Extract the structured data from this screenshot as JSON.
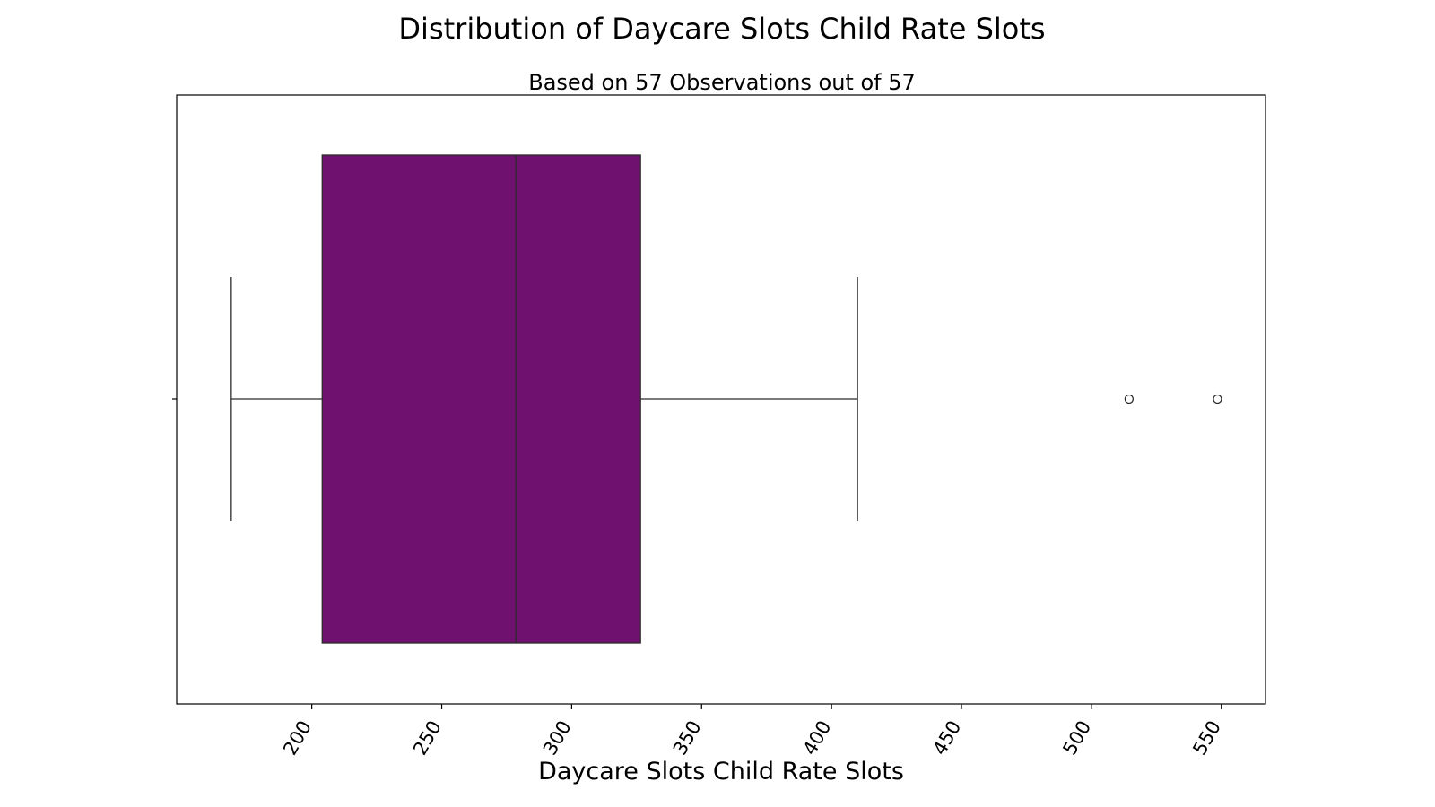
{
  "chart_data": {
    "type": "box",
    "title": "Distribution of Daycare Slots Child Rate Slots",
    "subtitle": "Based on 57 Observations out of 57",
    "xlabel": "Daycare Slots Child Rate Slots",
    "ylabel": "",
    "xlim": [
      148,
      567
    ],
    "xticks": [
      200,
      250,
      300,
      350,
      400,
      450,
      500,
      550
    ],
    "tick_rotation_deg": -60,
    "grid": false,
    "box": {
      "whisker_low": 169,
      "q1": 204,
      "median": 278.5,
      "q3": 326.5,
      "whisker_high": 410,
      "outliers": [
        514.5,
        548.5
      ]
    },
    "colors": {
      "box_fill": "#6f116e",
      "line": "#2b2b2b",
      "axes": "#000000"
    }
  }
}
